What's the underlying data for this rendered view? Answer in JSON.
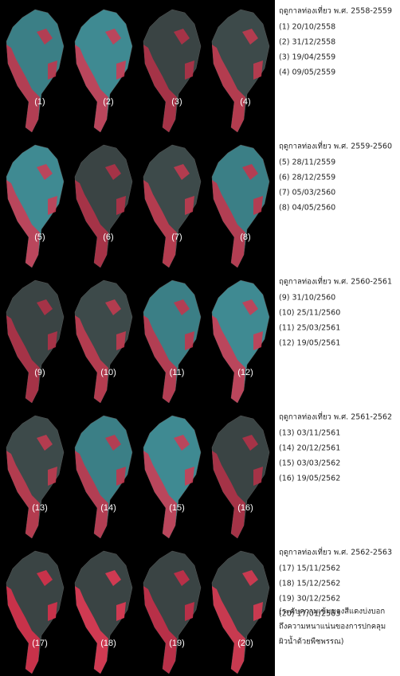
{
  "groups": [
    {
      "title": "ฤดูกาลท่องเที่ยว พ.ศ. 2558-2559",
      "dates": [
        "(1) 20/10/2558",
        "(2) 31/12/2558",
        "(3) 19/04/2559",
        "(4) 09/05/2559"
      ],
      "panels": [
        "(1)",
        "(2)",
        "(3)",
        "(4)"
      ]
    },
    {
      "title": "ฤดูกาลท่องเที่ยว พ.ศ. 2559-2560",
      "dates": [
        "(5) 28/11/2559",
        "(6) 28/12/2559",
        "(7) 05/03/2560",
        "(8) 04/05/2560"
      ],
      "panels": [
        "(5)",
        "(6)",
        "(7)",
        "(8)"
      ]
    },
    {
      "title": "ฤดูกาลท่องเที่ยว พ.ศ. 2560-2561",
      "dates": [
        "(9) 31/10/2560",
        "(10) 25/11/2560",
        "(11) 25/03/2561",
        "(12) 19/05/2561"
      ],
      "panels": [
        "(9)",
        "(10)",
        "(11)",
        "(12)"
      ]
    },
    {
      "title": "ฤดูกาลท่องเที่ยว พ.ศ. 2561-2562",
      "dates": [
        "(13) 03/11/2561",
        "(14) 20/12/2561",
        "(15) 03/03/2562",
        "(16) 19/05/2562"
      ],
      "panels": [
        "(13)",
        "(14)",
        "(15)",
        "(16)"
      ]
    },
    {
      "title": "ฤดูกาลท่องเที่ยว พ.ศ. 2562-2563",
      "dates": [
        "(17) 15/11/2562",
        "(18) 15/12/2562",
        "(19) 30/12/2562",
        "(20) 17/01/2563"
      ],
      "panels": [
        "(17)",
        "(18)",
        "(19)",
        "(20)"
      ]
    }
  ],
  "note": [
    "(ระดับความเข้มของสีแดงบ่งบอก",
    "ถึงความหนาแน่นของการปกคลุม",
    "ผิวน้ำด้วยพืชพรรณ)"
  ]
}
